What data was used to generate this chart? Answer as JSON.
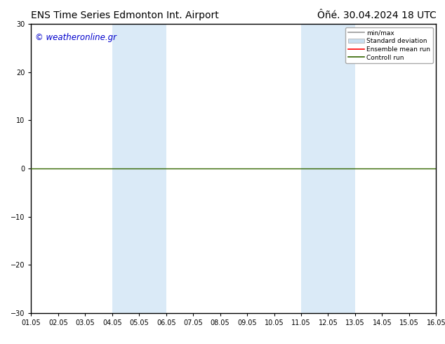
{
  "title_left": "ENS Time Series Edmonton Int. Airport",
  "title_right": "Ôñé. 30.04.2024 18 UTC",
  "watermark": "© weatheronline.gr",
  "watermark_color": "#0000cc",
  "ylim": [
    -30,
    30
  ],
  "yticks": [
    -30,
    -20,
    -10,
    0,
    10,
    20,
    30
  ],
  "x_start": 1.05,
  "x_end": 16.05,
  "xtick_labels": [
    "01.05",
    "02.05",
    "03.05",
    "04.05",
    "05.05",
    "06.05",
    "07.05",
    "08.05",
    "09.05",
    "10.05",
    "11.05",
    "12.05",
    "13.05",
    "14.05",
    "15.05",
    "16.05"
  ],
  "xtick_positions": [
    1.05,
    2.05,
    3.05,
    4.05,
    5.05,
    6.05,
    7.05,
    8.05,
    9.05,
    10.05,
    11.05,
    12.05,
    13.05,
    14.05,
    15.05,
    16.05
  ],
  "shaded_bands": [
    [
      4.05,
      5.05
    ],
    [
      5.05,
      6.05
    ],
    [
      11.05,
      12.05
    ],
    [
      12.05,
      13.05
    ]
  ],
  "shaded_color": "#daeaf7",
  "zero_line_color": "#336600",
  "zero_line_y": 0,
  "background_color": "#ffffff",
  "plot_bg_color": "#ffffff",
  "legend_items": [
    {
      "label": "min/max",
      "color": "#999999",
      "lw": 1.2,
      "style": "solid"
    },
    {
      "label": "Standard deviation",
      "color": "#c8dff0",
      "lw": 6,
      "style": "solid"
    },
    {
      "label": "Ensemble mean run",
      "color": "#ff0000",
      "lw": 1.2,
      "style": "solid"
    },
    {
      "label": "Controll run",
      "color": "#336600",
      "lw": 1.2,
      "style": "solid"
    }
  ],
  "title_fontsize": 10,
  "tick_fontsize": 7,
  "watermark_fontsize": 8.5,
  "border_color": "#000000",
  "spine_lw": 1.0
}
